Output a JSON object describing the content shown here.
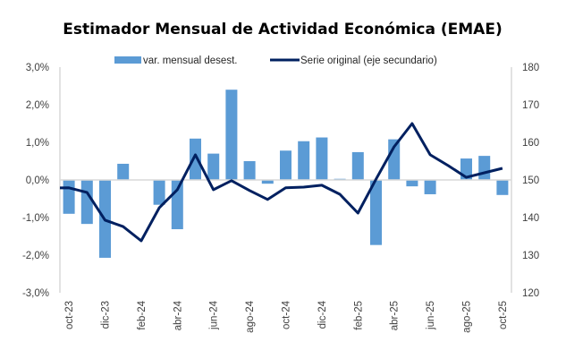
{
  "chart_data": {
    "type": "bar+line",
    "title": "Estimador Mensual de Actividad Económica (EMAE)",
    "xlabel": "",
    "ylabel": "",
    "y2label": "",
    "categories": [
      "oct-23",
      "nov-23",
      "dic-23",
      "ene-24",
      "feb-24",
      "mar-24",
      "abr-24",
      "may-24",
      "jun-24",
      "jul-24",
      "ago-24",
      "sep-24",
      "oct-24",
      "nov-24",
      "dic-24",
      "ene-25",
      "feb-25",
      "mar-25",
      "abr-25",
      "may-25",
      "jun-25",
      "jul-25",
      "ago-25",
      "sep-25",
      "oct-25"
    ],
    "x_tick_labels": [
      "oct-23",
      "dic-23",
      "feb-24",
      "abr-24",
      "jun-24",
      "ago-24",
      "oct-24",
      "dic-24",
      "feb-25",
      "abr-25",
      "jun-25",
      "ago-25",
      "oct-25"
    ],
    "series": [
      {
        "name": "var. mensual desest.",
        "type": "bar",
        "axis": "primary",
        "color": "#5B9BD5",
        "unit": "%",
        "values": [
          -0.9,
          -1.17,
          -2.07,
          0.43,
          0.0,
          -0.66,
          -1.31,
          1.1,
          0.7,
          2.4,
          0.5,
          -0.1,
          0.78,
          1.03,
          1.13,
          0.03,
          0.74,
          -1.73,
          1.08,
          -0.17,
          -0.38,
          0.0,
          0.57,
          0.64,
          -0.4
        ]
      },
      {
        "name": "Serie original (eje secundario)",
        "type": "line",
        "axis": "secondary",
        "color": "#002060",
        "values": [
          147.9,
          146.7,
          139.3,
          137.6,
          133.8,
          142.6,
          147.4,
          156.7,
          147.4,
          149.8,
          147.2,
          144.8,
          147.9,
          148.1,
          148.6,
          146.2,
          141.2,
          150.2,
          158.8,
          165.0,
          156.7,
          153.8,
          150.7,
          151.9,
          153.1
        ]
      }
    ],
    "ylim": [
      -3.0,
      3.0
    ],
    "y_ticks": [
      3.0,
      2.0,
      1.0,
      0.0,
      -1.0,
      -2.0,
      -3.0
    ],
    "y_tick_labels": [
      "3,0%",
      "2,0%",
      "1,0%",
      "0,0%",
      "-1,0%",
      "-2,0%",
      "-3,0%"
    ],
    "y2lim": [
      120,
      180
    ],
    "y2_ticks": [
      180,
      170,
      160,
      150,
      140,
      130,
      120
    ],
    "y2_tick_labels": [
      "180",
      "170",
      "160",
      "150",
      "140",
      "130",
      "120"
    ],
    "grid": false,
    "legend": {
      "placement": "top-center",
      "entries": [
        "var. mensual desest.",
        "Serie original (eje secundario)"
      ]
    },
    "colors": {
      "axis": "#D9D9D9",
      "zero_line": "#D9D9D9",
      "text": "#404040"
    }
  }
}
